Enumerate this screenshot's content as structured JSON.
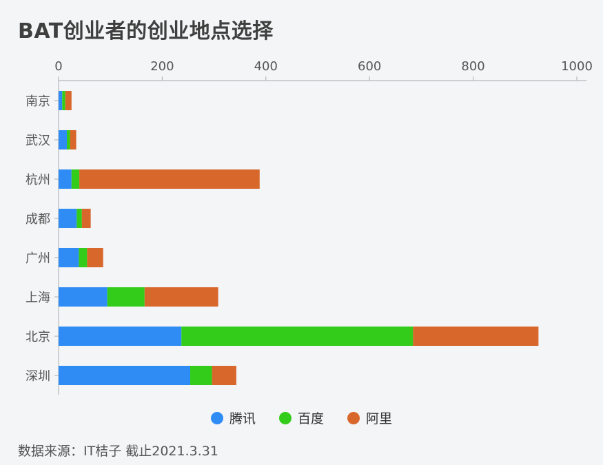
{
  "chart_data": {
    "type": "bar",
    "orientation": "horizontal",
    "stacked": true,
    "title": "BAT创业者的创业地点选择",
    "categories": [
      "南京",
      "武汉",
      "杭州",
      "成都",
      "广州",
      "上海",
      "北京",
      "深圳"
    ],
    "series": [
      {
        "name": "腾讯",
        "color": "#2f8cf5",
        "values": [
          7,
          16,
          25,
          35,
          39,
          94,
          237,
          254
        ]
      },
      {
        "name": "百度",
        "color": "#33cc1a",
        "values": [
          6,
          6,
          15,
          10,
          16,
          72,
          447,
          42
        ]
      },
      {
        "name": "阿里",
        "color": "#d8672c",
        "values": [
          12,
          12,
          348,
          17,
          31,
          142,
          242,
          47
        ]
      }
    ],
    "xlim": [
      0,
      1000
    ],
    "xticks": [
      "0",
      "200",
      "400",
      "600",
      "800",
      "1000"
    ],
    "legend_position": "bottom",
    "grid": false,
    "source": "数据来源：IT桔子 截止2021.3.31"
  }
}
